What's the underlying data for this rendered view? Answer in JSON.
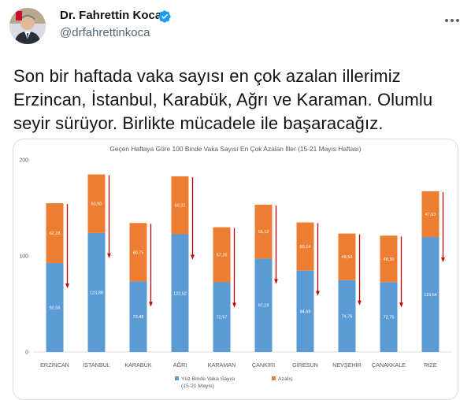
{
  "author": {
    "name": "Dr. Fahrettin Koca",
    "handle": "@drfahrettinkoca",
    "verified": true,
    "avatar": "avatar-photo",
    "verified_icon": "verified-badge-icon",
    "more_icon": "more-options-icon"
  },
  "tweet": {
    "text": "Son bir haftada vaka sayısı en çok azalan illerimiz Erzincan, İstanbul, Karabük, Ağrı ve Karaman. Olumlu seyir sürüyor. Birlikte mücadele ile başaracağız."
  },
  "colors": {
    "base_series": "#5b9bd5",
    "decrease_series": "#ed7d31",
    "arrow": "#c00000",
    "verified": "#1d9bf0"
  },
  "chart_data": {
    "type": "bar",
    "stacked": true,
    "title": "Geçen Haftaya Göre 100 Binde Vaka Sayısı En Çok Azalan İller (15-21 Mayıs Haftası)",
    "categories": [
      "ERZİNCAN",
      "İSTANBUL",
      "KARABÜK",
      "AĞRI",
      "KARAMAN",
      "ÇANKIRI",
      "GİRESUN",
      "NEVŞEHİR",
      "ÇANAKKALE",
      "RİZE"
    ],
    "series": [
      {
        "name": "Yüz Binde Vaka Sayısı (15-21 Mayıs)",
        "values": [
          92.56,
          123.88,
          73.48,
          122.52,
          72.57,
          97.18,
          84.69,
          74.76,
          72.75,
          119.64
        ],
        "labels": [
          "92,56",
          "123,88",
          "73,48",
          "122,52",
          "72,57",
          "97,18",
          "84,69",
          "74,76",
          "72,75",
          "119,64"
        ]
      },
      {
        "name": "Azalış",
        "values": [
          62.28,
          60.9,
          60.75,
          60.32,
          57.26,
          56.12,
          50.14,
          48.53,
          48.3,
          47.63
        ],
        "labels": [
          "62,28",
          "60,90",
          "60,75",
          "60,32",
          "57,26",
          "56,12",
          "50,14",
          "48,53",
          "48,30",
          "47,63"
        ]
      }
    ],
    "ylim": [
      0,
      200
    ],
    "yticks": [
      0,
      100,
      200
    ],
    "ytick_labels": [
      "0",
      "100",
      "200"
    ],
    "legend": {
      "position": "bottom",
      "items": [
        {
          "lines": [
            "Yüz Binde Vaka Sayısı",
            "(15-21 Mayıs)"
          ]
        },
        {
          "lines": [
            "Azalış"
          ]
        }
      ]
    },
    "annotations": "downward red arrow beside each bar indicating decrease",
    "grid": false
  }
}
